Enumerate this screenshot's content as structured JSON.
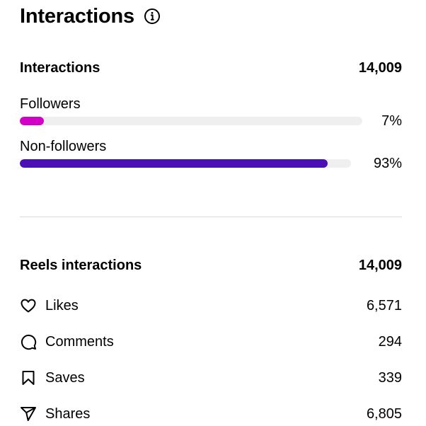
{
  "header": {
    "title": "Interactions",
    "info_icon": "info-icon"
  },
  "interactions": {
    "label": "Interactions",
    "total": "14,009",
    "audience": [
      {
        "label": "Followers",
        "percent_text": "7%",
        "percent": 7,
        "color": "#d300c5"
      },
      {
        "label": "Non-followers",
        "percent_text": "93%",
        "percent": 93,
        "color": "#4a0fb5"
      }
    ]
  },
  "reels": {
    "label": "Reels interactions",
    "total": "14,009",
    "metrics": [
      {
        "label": "Likes",
        "value": "6,571",
        "icon": "heart-icon"
      },
      {
        "label": "Comments",
        "value": "294",
        "icon": "comment-icon"
      },
      {
        "label": "Saves",
        "value": "339",
        "icon": "bookmark-icon"
      },
      {
        "label": "Shares",
        "value": "6,805",
        "icon": "share-icon"
      }
    ]
  },
  "colors": {
    "track": "#efefef",
    "divider": "#dbdbdb",
    "text": "#000000"
  }
}
